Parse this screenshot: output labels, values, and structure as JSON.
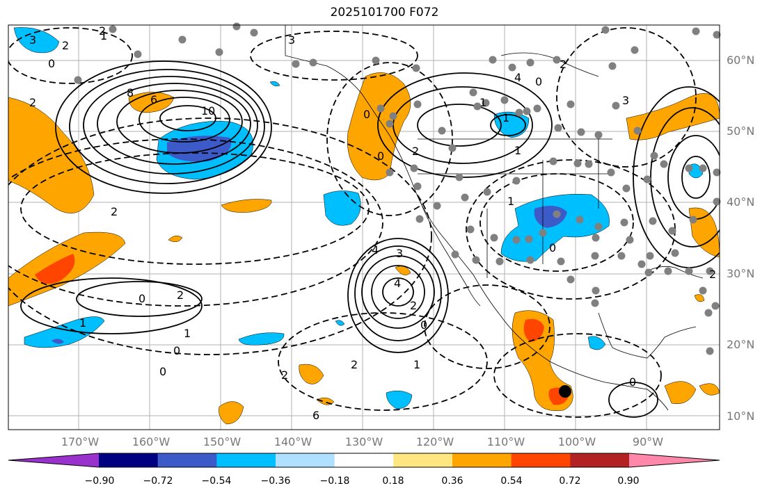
{
  "title": "2025101700 F072",
  "lat_labels": [
    "60°N",
    "50°N",
    "40°N",
    "30°N",
    "20°N",
    "10°N"
  ],
  "lon_labels": [
    "170°W",
    "160°W",
    "150°W",
    "140°W",
    "130°W",
    "120°W",
    "110°W",
    "100°W",
    "90°W"
  ],
  "colorbar": {
    "ticks": [
      "−0.90",
      "−0.72",
      "−0.54",
      "−0.36",
      "−0.18",
      "0.18",
      "0.36",
      "0.54",
      "0.72",
      "0.90"
    ],
    "colors": [
      "#9932cc",
      "#000080",
      "#3c5ac8",
      "#00bfff",
      "#b0e0ff",
      "#ffffff",
      "#ffe680",
      "#ffa500",
      "#ff4500",
      "#b22222",
      "#ff88aa"
    ]
  },
  "contour_labels": [
    "3",
    "2",
    "0",
    "1",
    "2",
    "10",
    "6",
    "8",
    "2",
    "3",
    "4",
    "1",
    "1",
    "2",
    "0",
    "1",
    "2",
    "0",
    "3",
    "4",
    "2",
    "0",
    "2",
    "1",
    "2",
    "6",
    "4",
    "2",
    "0",
    "1",
    "0",
    "2",
    "1",
    "0",
    "0",
    "1",
    "0",
    "2",
    "3",
    "0"
  ],
  "colors": {
    "orange": "#ffa500",
    "red": "#ff4500",
    "cyan": "#00bfff",
    "blue": "#3c5ac8",
    "stations": "#808080"
  }
}
